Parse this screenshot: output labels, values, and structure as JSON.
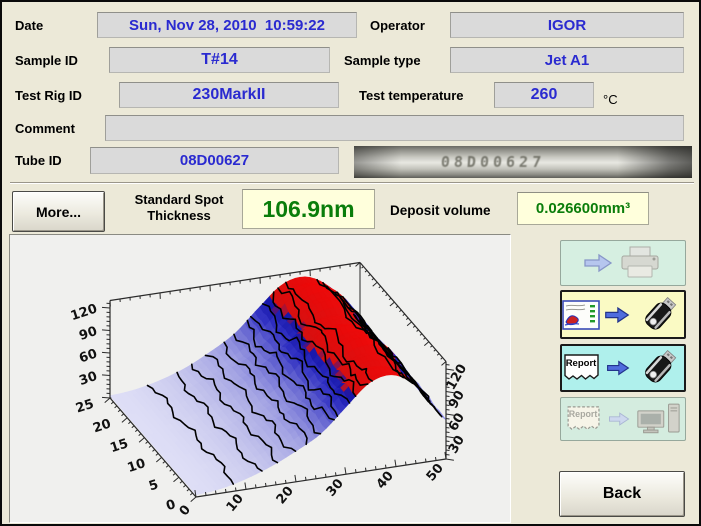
{
  "form": {
    "date": {
      "label": "Date",
      "value": "Sun, Nov 28, 2010  10:59:22"
    },
    "operator": {
      "label": "Operator",
      "value": "IGOR"
    },
    "sample_id": {
      "label": "Sample ID",
      "value": "T#14"
    },
    "sample_type": {
      "label": "Sample type",
      "value": "Jet A1"
    },
    "test_rig_id": {
      "label": "Test Rig ID",
      "value": "230MarkII"
    },
    "test_temperature": {
      "label": "Test temperature",
      "value": "260",
      "unit": "°C"
    },
    "comment": {
      "label": "Comment",
      "value": ""
    },
    "tube_id": {
      "label": "Tube ID",
      "value": "08D00627"
    }
  },
  "tube_photo": {
    "etched_id": "08D00627"
  },
  "results": {
    "more_button_label": "More...",
    "thickness_label": "Standard Spot Thickness",
    "thickness_value": "106.9nm",
    "volume_label": "Deposit volume",
    "volume_value": "0.026600mm³"
  },
  "side_buttons": {
    "print": {
      "icons": [
        "arrow-icon",
        "printer-icon"
      ]
    },
    "screenshot_to_usb": {
      "icons": [
        "screenshot-thumbnail-icon",
        "arrow-icon",
        "usb-stick-icon"
      ]
    },
    "report_to_usb": {
      "doc_label": "Report",
      "icons": [
        "report-doc-icon",
        "arrow-icon",
        "usb-stick-icon"
      ]
    },
    "report_to_pc": {
      "doc_label": "Report",
      "icons": [
        "report-doc-icon",
        "arrow-icon",
        "computer-icon"
      ],
      "state": "disabled"
    }
  },
  "back_button": {
    "label": "Back"
  },
  "chart_data": {
    "type": "surface",
    "title": "",
    "description": "3D surface plot of deposit thickness (nm) over tube position (mm) and circumference, with black contour lines; blue = low thickness, red = high",
    "x_axis": {
      "range": [
        0,
        50
      ],
      "ticks": [
        0,
        10,
        20,
        30,
        40,
        50
      ]
    },
    "y_axis": {
      "range": [
        0,
        25
      ],
      "ticks": [
        0,
        5,
        10,
        15,
        20,
        25
      ]
    },
    "z_axis": {
      "range": [
        0,
        130
      ],
      "ticks": [
        30,
        60,
        90,
        120
      ]
    },
    "thickness_profile": {
      "x_mm": [
        0,
        5,
        10,
        15,
        20,
        25,
        30,
        35,
        40,
        45,
        50
      ],
      "thickness_nm": [
        3,
        6,
        14,
        26,
        42,
        60,
        88,
        114,
        119,
        98,
        55
      ]
    },
    "contour_levels": [
      10,
      20,
      30,
      40,
      50,
      60,
      70,
      80,
      90,
      100,
      110,
      115
    ],
    "colors": {
      "surface_low": "#e2e2f8",
      "surface_mid": "#6868d8",
      "surface_high": "#1818b0",
      "surface_peak": "#ee0808",
      "contour": "#000000",
      "red_threshold": 100,
      "plot_bg": "#f0f0ee"
    }
  }
}
